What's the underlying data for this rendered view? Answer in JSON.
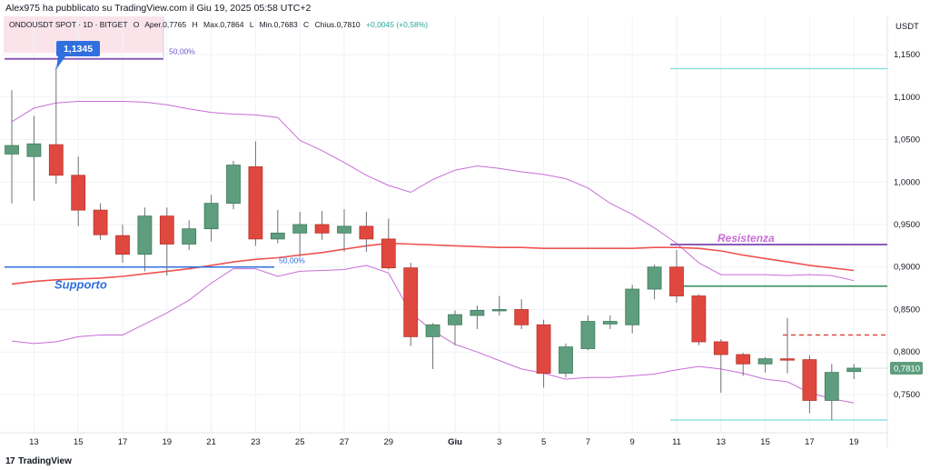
{
  "header": {
    "published": "Alex975 ha pubblicato su TradingView.com il Giu 19, 2025 05:58 UTC+2"
  },
  "legend": {
    "symbol": "ONDOUSDT SPOT · 1D · BITGET",
    "open_label": "O",
    "open": "Aper.0,7765",
    "high_label": "H",
    "high": "Max.0,7864",
    "low_label": "L",
    "low": "Min.0,7683",
    "close_label": "C",
    "close": "Chius.0,7810",
    "change": "+0,0045 (+0,58%)"
  },
  "footer": {
    "logo": "17",
    "brand": "TradingView"
  },
  "colors": {
    "up": "#5e9e7e",
    "down": "#e0483f",
    "ma": "#ef5350",
    "band": "#c86dd7",
    "support": "#2f6fde",
    "resistance": "#8b5cb8",
    "cyan": "#7fdcdc",
    "green_line": "#2e8b57"
  },
  "chart_data": {
    "type": "candlestick",
    "title": "ONDOUSDT SPOT · 1D · BITGET",
    "currency_label": "USDT",
    "ylim": [
      0.705,
      1.195
    ],
    "y_ticks": [
      "1,1500",
      "1,1000",
      "1,0500",
      "1,0000",
      "0,9500",
      "0,9000",
      "0,8500",
      "0,8000",
      "0,7500"
    ],
    "y_tick_values": [
      1.15,
      1.1,
      1.05,
      1.0,
      0.95,
      0.9,
      0.85,
      0.8,
      0.75
    ],
    "x_ticks": [
      "13",
      "15",
      "17",
      "19",
      "21",
      "23",
      "25",
      "27",
      "29",
      "Giu",
      "3",
      "5",
      "7",
      "9",
      "11",
      "13",
      "15",
      "17",
      "19"
    ],
    "x_tick_index": [
      1,
      3,
      5,
      7,
      9,
      11,
      13,
      15,
      17,
      20,
      22,
      24,
      26,
      28,
      30,
      32,
      34,
      36,
      38
    ],
    "last_price_label": "0,7810",
    "last_price": 0.781,
    "candles": [
      {
        "o": 1.033,
        "h": 1.108,
        "l": 0.975,
        "c": 1.043
      },
      {
        "o": 1.03,
        "h": 1.078,
        "l": 0.978,
        "c": 1.045
      },
      {
        "o": 1.044,
        "h": 1.135,
        "l": 0.998,
        "c": 1.008
      },
      {
        "o": 1.008,
        "h": 1.03,
        "l": 0.948,
        "c": 0.967
      },
      {
        "o": 0.967,
        "h": 0.975,
        "l": 0.932,
        "c": 0.938
      },
      {
        "o": 0.937,
        "h": 0.95,
        "l": 0.905,
        "c": 0.915
      },
      {
        "o": 0.915,
        "h": 0.97,
        "l": 0.895,
        "c": 0.96
      },
      {
        "o": 0.96,
        "h": 0.97,
        "l": 0.89,
        "c": 0.927
      },
      {
        "o": 0.927,
        "h": 0.955,
        "l": 0.92,
        "c": 0.945
      },
      {
        "o": 0.945,
        "h": 0.985,
        "l": 0.93,
        "c": 0.975
      },
      {
        "o": 0.975,
        "h": 1.025,
        "l": 0.968,
        "c": 1.02
      },
      {
        "o": 1.018,
        "h": 1.048,
        "l": 0.925,
        "c": 0.933
      },
      {
        "o": 0.933,
        "h": 0.967,
        "l": 0.928,
        "c": 0.94
      },
      {
        "o": 0.94,
        "h": 0.965,
        "l": 0.912,
        "c": 0.95
      },
      {
        "o": 0.95,
        "h": 0.966,
        "l": 0.932,
        "c": 0.94
      },
      {
        "o": 0.94,
        "h": 0.968,
        "l": 0.918,
        "c": 0.948
      },
      {
        "o": 0.948,
        "h": 0.965,
        "l": 0.918,
        "c": 0.933
      },
      {
        "o": 0.933,
        "h": 0.957,
        "l": 0.897,
        "c": 0.899
      },
      {
        "o": 0.899,
        "h": 0.905,
        "l": 0.807,
        "c": 0.818
      },
      {
        "o": 0.818,
        "h": 0.834,
        "l": 0.78,
        "c": 0.832
      },
      {
        "o": 0.832,
        "h": 0.849,
        "l": 0.808,
        "c": 0.844
      },
      {
        "o": 0.843,
        "h": 0.855,
        "l": 0.827,
        "c": 0.849
      },
      {
        "o": 0.85,
        "h": 0.866,
        "l": 0.843,
        "c": 0.85
      },
      {
        "o": 0.85,
        "h": 0.862,
        "l": 0.827,
        "c": 0.832
      },
      {
        "o": 0.832,
        "h": 0.838,
        "l": 0.758,
        "c": 0.775
      },
      {
        "o": 0.775,
        "h": 0.81,
        "l": 0.77,
        "c": 0.806
      },
      {
        "o": 0.804,
        "h": 0.843,
        "l": 0.802,
        "c": 0.836
      },
      {
        "o": 0.833,
        "h": 0.843,
        "l": 0.827,
        "c": 0.836
      },
      {
        "o": 0.832,
        "h": 0.879,
        "l": 0.822,
        "c": 0.874
      },
      {
        "o": 0.874,
        "h": 0.903,
        "l": 0.862,
        "c": 0.9
      },
      {
        "o": 0.9,
        "h": 0.92,
        "l": 0.858,
        "c": 0.866
      },
      {
        "o": 0.866,
        "h": 0.868,
        "l": 0.808,
        "c": 0.812
      },
      {
        "o": 0.812,
        "h": 0.815,
        "l": 0.752,
        "c": 0.797
      },
      {
        "o": 0.797,
        "h": 0.799,
        "l": 0.772,
        "c": 0.786
      },
      {
        "o": 0.786,
        "h": 0.794,
        "l": 0.776,
        "c": 0.792
      },
      {
        "o": 0.792,
        "h": 0.84,
        "l": 0.775,
        "c": 0.791
      },
      {
        "o": 0.791,
        "h": 0.796,
        "l": 0.728,
        "c": 0.743
      },
      {
        "o": 0.743,
        "h": 0.786,
        "l": 0.72,
        "c": 0.776
      },
      {
        "o": 0.777,
        "h": 0.786,
        "l": 0.768,
        "c": 0.781
      }
    ],
    "moving_average": [
      0.88,
      0.883,
      0.885,
      0.886,
      0.887,
      0.889,
      0.892,
      0.895,
      0.898,
      0.902,
      0.906,
      0.909,
      0.911,
      0.914,
      0.917,
      0.921,
      0.925,
      0.928,
      0.927,
      0.926,
      0.925,
      0.924,
      0.923,
      0.923,
      0.922,
      0.922,
      0.922,
      0.922,
      0.922,
      0.923,
      0.923,
      0.922,
      0.919,
      0.914,
      0.91,
      0.906,
      0.902,
      0.899,
      0.896
    ],
    "upper_band": [
      1.071,
      1.087,
      1.093,
      1.095,
      1.095,
      1.095,
      1.094,
      1.091,
      1.086,
      1.082,
      1.08,
      1.079,
      1.076,
      1.049,
      1.037,
      1.023,
      1.008,
      0.996,
      0.988,
      1.003,
      1.014,
      1.019,
      1.016,
      1.012,
      1.009,
      1.004,
      0.993,
      0.975,
      0.962,
      0.946,
      0.928,
      0.905,
      0.891,
      0.891,
      0.891,
      0.89,
      0.891,
      0.89,
      0.884
    ],
    "lower_band": [
      0.813,
      0.81,
      0.812,
      0.818,
      0.82,
      0.82,
      0.833,
      0.846,
      0.861,
      0.881,
      0.898,
      0.898,
      0.889,
      0.895,
      0.896,
      0.897,
      0.902,
      0.893,
      0.846,
      0.825,
      0.809,
      0.8,
      0.79,
      0.78,
      0.775,
      0.768,
      0.77,
      0.77,
      0.772,
      0.774,
      0.779,
      0.783,
      0.78,
      0.775,
      0.768,
      0.765,
      0.752,
      0.745,
      0.74
    ],
    "annotations": {
      "high_label": "1,1345",
      "high_value": 1.1345,
      "high_line_value": 1.145,
      "high_line_pct": "50,00%",
      "support_label": "Supporto",
      "support_value": 0.9,
      "support_pct": "50,00%",
      "resistance_label": "Resistenza",
      "resistance_value": 0.9265,
      "green_level": 0.8775,
      "dashed_level": 0.82,
      "cyan_top": 1.1335,
      "cyan_bottom": 0.72
    }
  }
}
